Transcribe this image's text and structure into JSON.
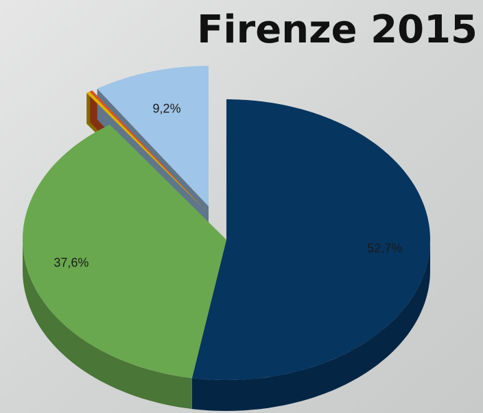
{
  "chart_data": {
    "type": "pie",
    "title": "Firenze 2015",
    "series": [
      {
        "colors": [
          "#06355f",
          "#6aa84f",
          "#e0b000",
          "#e0501e",
          "#9fc5e8"
        ],
        "values": [
          52.7,
          37.6,
          0.3,
          0.2,
          9.2
        ],
        "value_labels": [
          "52,7%",
          "37,6%",
          null,
          null,
          "9,2%"
        ]
      }
    ]
  }
}
